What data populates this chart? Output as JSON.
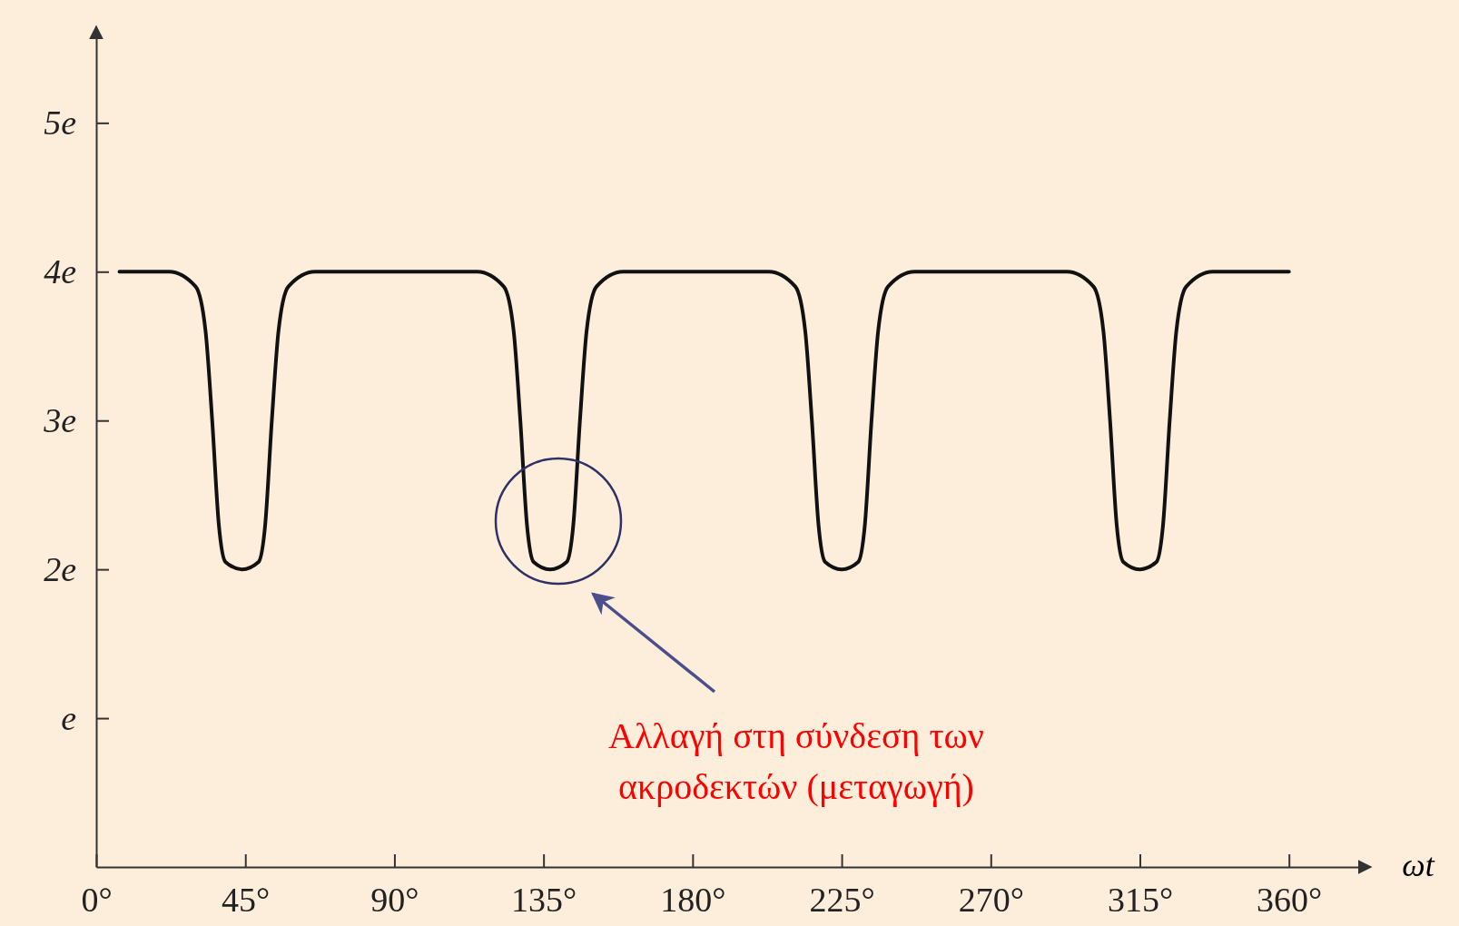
{
  "chart_data": {
    "type": "line",
    "xlabel": "ωt",
    "x": [
      7,
      22,
      30,
      33,
      35,
      37,
      39,
      44,
      49,
      51,
      53,
      55,
      58,
      66,
      115,
      123,
      126,
      128,
      130,
      132,
      137,
      142,
      144,
      146,
      148,
      151,
      159,
      203,
      211,
      214,
      216,
      218,
      220,
      225,
      230,
      232,
      234,
      236,
      239,
      247,
      293,
      301,
      304,
      306,
      308,
      310,
      315,
      320,
      322,
      324,
      326,
      329,
      337,
      360
    ],
    "series": [
      {
        "color": "#111111",
        "values": [
          4,
          4,
          3.9,
          3.6,
          3.0,
          2.3,
          2.05,
          2,
          2.05,
          2.3,
          3.0,
          3.6,
          3.9,
          4,
          4,
          3.9,
          3.6,
          3.0,
          2.3,
          2.05,
          2,
          2.05,
          2.3,
          3.0,
          3.6,
          3.9,
          4,
          4,
          3.9,
          3.6,
          3.0,
          2.3,
          2.05,
          2,
          2.05,
          2.3,
          3.0,
          3.6,
          3.9,
          4,
          4,
          3.9,
          3.6,
          3.0,
          2.3,
          2.05,
          2,
          2.05,
          2.3,
          3.0,
          3.6,
          3.9,
          4,
          4
        ]
      }
    ],
    "xlim": [
      0,
      382
    ],
    "xticks": [
      {
        "value": 0,
        "label": "0°"
      },
      {
        "value": 45,
        "label": "45°"
      },
      {
        "value": 90,
        "label": "90°"
      },
      {
        "value": 135,
        "label": "135°"
      },
      {
        "value": 180,
        "label": "180°"
      },
      {
        "value": 225,
        "label": "225°"
      },
      {
        "value": 270,
        "label": "270°"
      },
      {
        "value": 315,
        "label": "315°"
      },
      {
        "value": 360,
        "label": "360°"
      }
    ],
    "ylim": [
      0,
      5.6
    ],
    "yticks": [
      {
        "value": 1,
        "label": "e"
      },
      {
        "value": 2,
        "label": "2e"
      },
      {
        "value": 3,
        "label": "3e"
      },
      {
        "value": 4,
        "label": "4e"
      },
      {
        "value": 5,
        "label": "5e"
      }
    ],
    "annotations": [
      "Αλλαγή στη σύνδεση των ακροδεκτών (μεταγωγή)"
    ],
    "grid": false,
    "marker": "none",
    "line_style": "solid"
  }
}
